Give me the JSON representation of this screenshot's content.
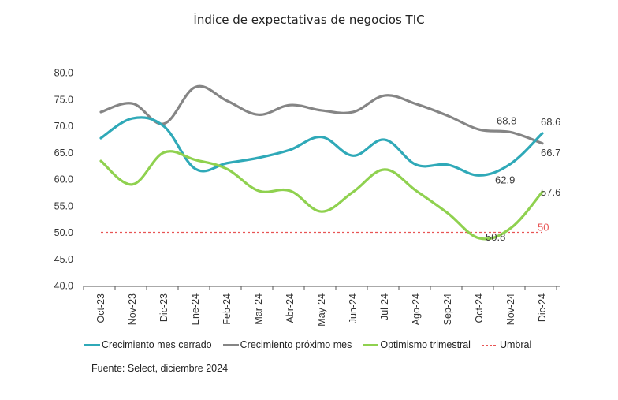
{
  "chart_data": {
    "type": "line",
    "title": "Índice de expectativas de negocios TIC",
    "xlabel": "",
    "ylabel": "",
    "ylim": [
      40,
      80
    ],
    "yticks": [
      "80.0",
      "75.0",
      "70.0",
      "65.0",
      "60.0",
      "55.0",
      "50.0",
      "45.0",
      "40.0"
    ],
    "categories": [
      "Oct-23",
      "Nov-23",
      "Dic-23",
      "Ene-24",
      "Feb-24",
      "Mar-24",
      "Abr-24",
      "May-24",
      "Jun-24",
      "Jul-24",
      "Ago-24",
      "Sep-24",
      "Oct-24",
      "Nov-24",
      "Dic-24"
    ],
    "grid": false,
    "legend_position": "bottom",
    "series": [
      {
        "name": "Crecimiento mes cerrado",
        "color": "#2fa9b8",
        "values": [
          67.7,
          71.4,
          69.9,
          61.9,
          63.0,
          64.0,
          65.5,
          67.9,
          64.4,
          67.4,
          62.7,
          62.7,
          60.7,
          62.9,
          68.6
        ],
        "labels": [
          {
            "index": 13,
            "text": "62.9"
          },
          {
            "index": 14,
            "text": "68.6"
          }
        ]
      },
      {
        "name": "Crecimiento próximo mes",
        "color": "#858585",
        "values": [
          72.6,
          74.2,
          70.4,
          77.3,
          74.7,
          72.1,
          73.9,
          72.9,
          72.6,
          75.7,
          74.1,
          71.9,
          69.3,
          68.8,
          66.7
        ],
        "labels": [
          {
            "index": 13,
            "text": "68.8"
          },
          {
            "index": 14,
            "text": "66.7"
          }
        ]
      },
      {
        "name": "Optimismo trimestral",
        "color": "#8fd14f",
        "values": [
          63.4,
          59.0,
          65.0,
          63.6,
          61.9,
          57.8,
          57.8,
          53.9,
          57.6,
          61.8,
          57.8,
          53.6,
          48.9,
          50.8,
          57.6
        ],
        "labels": [
          {
            "index": 13,
            "text": "50.8"
          },
          {
            "index": 14,
            "text": "57.6"
          }
        ]
      }
    ],
    "threshold": {
      "name": "Umbral",
      "value": 50,
      "label": "50",
      "color": "#e85555"
    }
  },
  "legend": {
    "items": [
      {
        "label": "Crecimiento mes cerrado",
        "color": "#2fa9b8"
      },
      {
        "label": "Crecimiento próximo mes",
        "color": "#858585"
      },
      {
        "label": "Optimismo trimestral",
        "color": "#8fd14f"
      },
      {
        "label": "Umbral",
        "color": "#e85555"
      }
    ]
  },
  "source": "Fuente: Select, diciembre 2024"
}
